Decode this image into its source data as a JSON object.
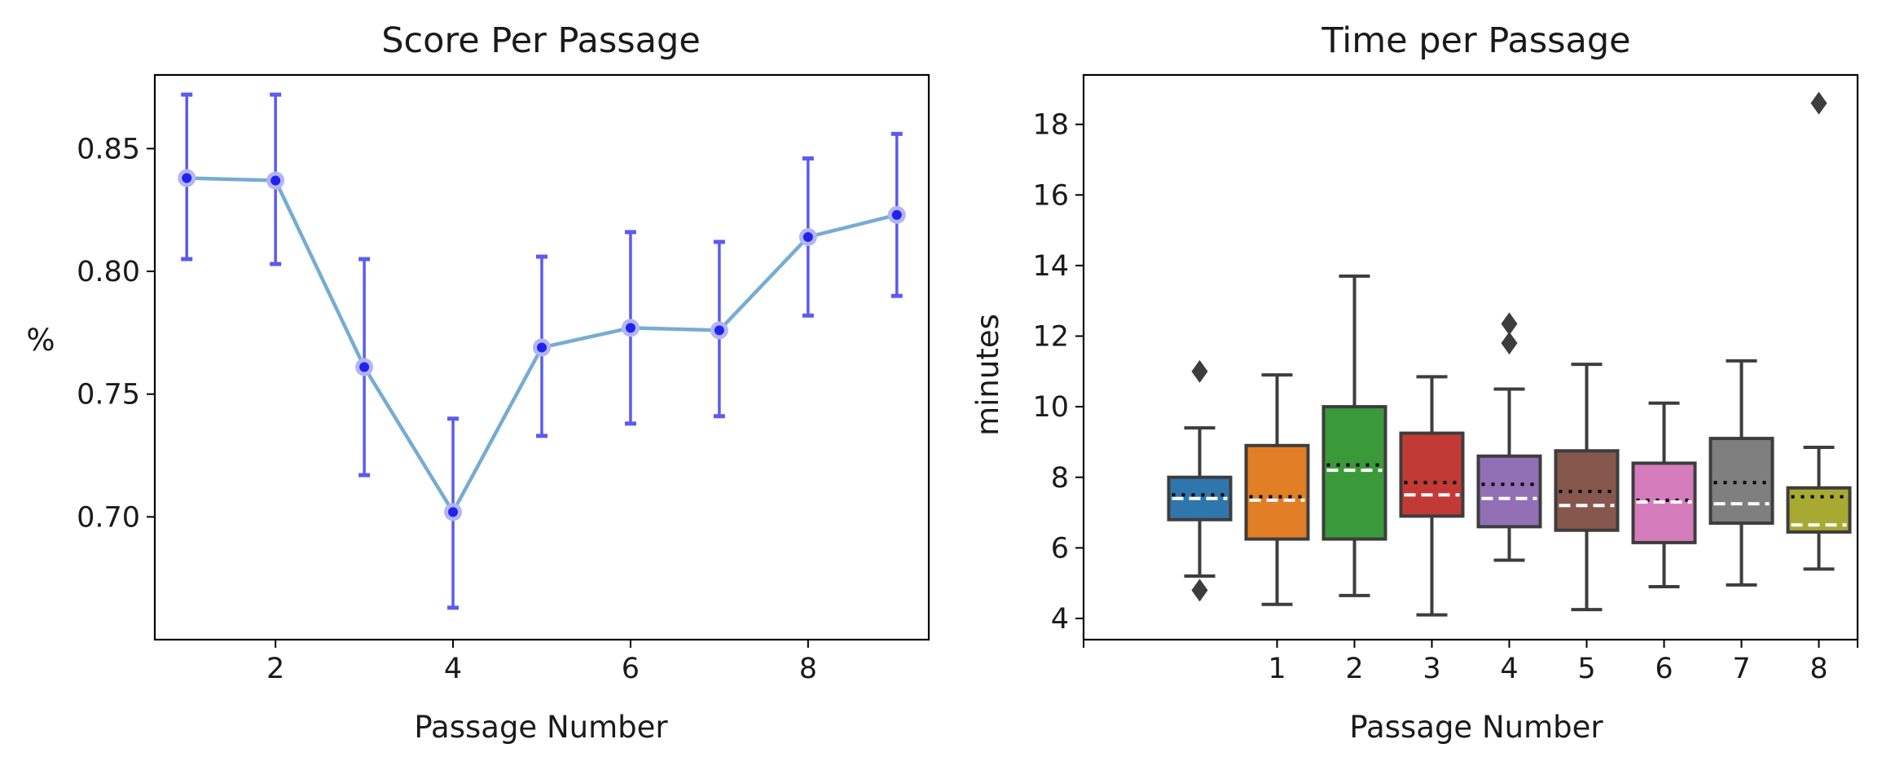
{
  "chart_data": [
    {
      "type": "line",
      "title": "Score Per Passage",
      "xlabel": "Passage Number",
      "ylabel": "%",
      "xlim": [
        0.64,
        9.36
      ],
      "ylim": [
        0.65,
        0.88
      ],
      "xticks": [
        2,
        4,
        6,
        8
      ],
      "yticks": [
        0.7,
        0.75,
        0.8,
        0.85
      ],
      "xtick_labels": [
        "2",
        "4",
        "6",
        "8"
      ],
      "ytick_labels": [
        "0.70",
        "0.75",
        "0.80",
        "0.85"
      ],
      "grid": false,
      "x": [
        1,
        2,
        3,
        4,
        5,
        6,
        7,
        8,
        9
      ],
      "y": [
        0.838,
        0.837,
        0.761,
        0.702,
        0.769,
        0.777,
        0.776,
        0.814,
        0.823
      ],
      "error_low": [
        0.805,
        0.803,
        0.717,
        0.663,
        0.733,
        0.738,
        0.741,
        0.782,
        0.79
      ],
      "error_high": [
        0.872,
        0.872,
        0.805,
        0.74,
        0.806,
        0.816,
        0.812,
        0.846,
        0.856
      ],
      "colors": {
        "line": "#76acd3",
        "marker": "#2222ee",
        "marker_halo": "#b3b6f2",
        "errorbar": "#5b5bf0"
      }
    },
    {
      "type": "box",
      "title": "Time per Passage",
      "xlabel": "Passage Number",
      "ylabel": "minutes",
      "xlim": [
        -1.5,
        8.5
      ],
      "ylim": [
        3.4,
        19.4
      ],
      "xticks": [
        1,
        2,
        3,
        4,
        5,
        6,
        7,
        8
      ],
      "yticks": [
        4,
        6,
        8,
        10,
        12,
        14,
        16,
        18
      ],
      "xtick_labels": [
        "1",
        "2",
        "3",
        "4",
        "5",
        "6",
        "7",
        "8"
      ],
      "ytick_labels": [
        "4",
        "6",
        "8",
        "10",
        "12",
        "14",
        "16",
        "18"
      ],
      "grid": false,
      "boxes": [
        {
          "x": 0,
          "q1": 6.8,
          "median": 7.4,
          "q3": 8.0,
          "whisker_low": 5.2,
          "whisker_high": 9.4,
          "mean": 7.5,
          "outliers": [
            11.0,
            4.8
          ],
          "color": "#2f76ad"
        },
        {
          "x": 1,
          "q1": 6.25,
          "median": 7.35,
          "q3": 8.9,
          "whisker_low": 4.4,
          "whisker_high": 10.9,
          "mean": 7.45,
          "outliers": [],
          "color": "#e27e25"
        },
        {
          "x": 2,
          "q1": 6.25,
          "median": 8.2,
          "q3": 10.0,
          "whisker_low": 4.65,
          "whisker_high": 13.7,
          "mean": 8.35,
          "outliers": [],
          "color": "#3a9a3a"
        },
        {
          "x": 3,
          "q1": 6.9,
          "median": 7.5,
          "q3": 9.25,
          "whisker_low": 4.1,
          "whisker_high": 10.85,
          "mean": 7.85,
          "outliers": [],
          "color": "#c23a36"
        },
        {
          "x": 4,
          "q1": 6.6,
          "median": 7.4,
          "q3": 8.6,
          "whisker_low": 5.65,
          "whisker_high": 10.5,
          "mean": 7.8,
          "outliers": [
            12.35,
            11.8
          ],
          "color": "#9170b5"
        },
        {
          "x": 5,
          "q1": 6.5,
          "median": 7.2,
          "q3": 8.75,
          "whisker_low": 4.25,
          "whisker_high": 11.2,
          "mean": 7.6,
          "outliers": [],
          "color": "#85574d"
        },
        {
          "x": 6,
          "q1": 6.15,
          "median": 7.3,
          "q3": 8.4,
          "whisker_low": 4.9,
          "whisker_high": 10.1,
          "mean": 7.35,
          "outliers": [],
          "color": "#d57cbc"
        },
        {
          "x": 7,
          "q1": 6.7,
          "median": 7.25,
          "q3": 9.1,
          "whisker_low": 4.95,
          "whisker_high": 11.3,
          "mean": 7.85,
          "outliers": [],
          "color": "#7f7f7f"
        },
        {
          "x": 8,
          "q1": 6.45,
          "median": 6.65,
          "q3": 7.7,
          "whisker_low": 5.4,
          "whisker_high": 8.85,
          "mean": 7.45,
          "outliers": [
            18.6
          ],
          "color": "#a8a932"
        }
      ],
      "colors": {
        "edge": "#3d3d3d",
        "median_line": "#ffffff",
        "mean_line": "#000000"
      }
    }
  ]
}
